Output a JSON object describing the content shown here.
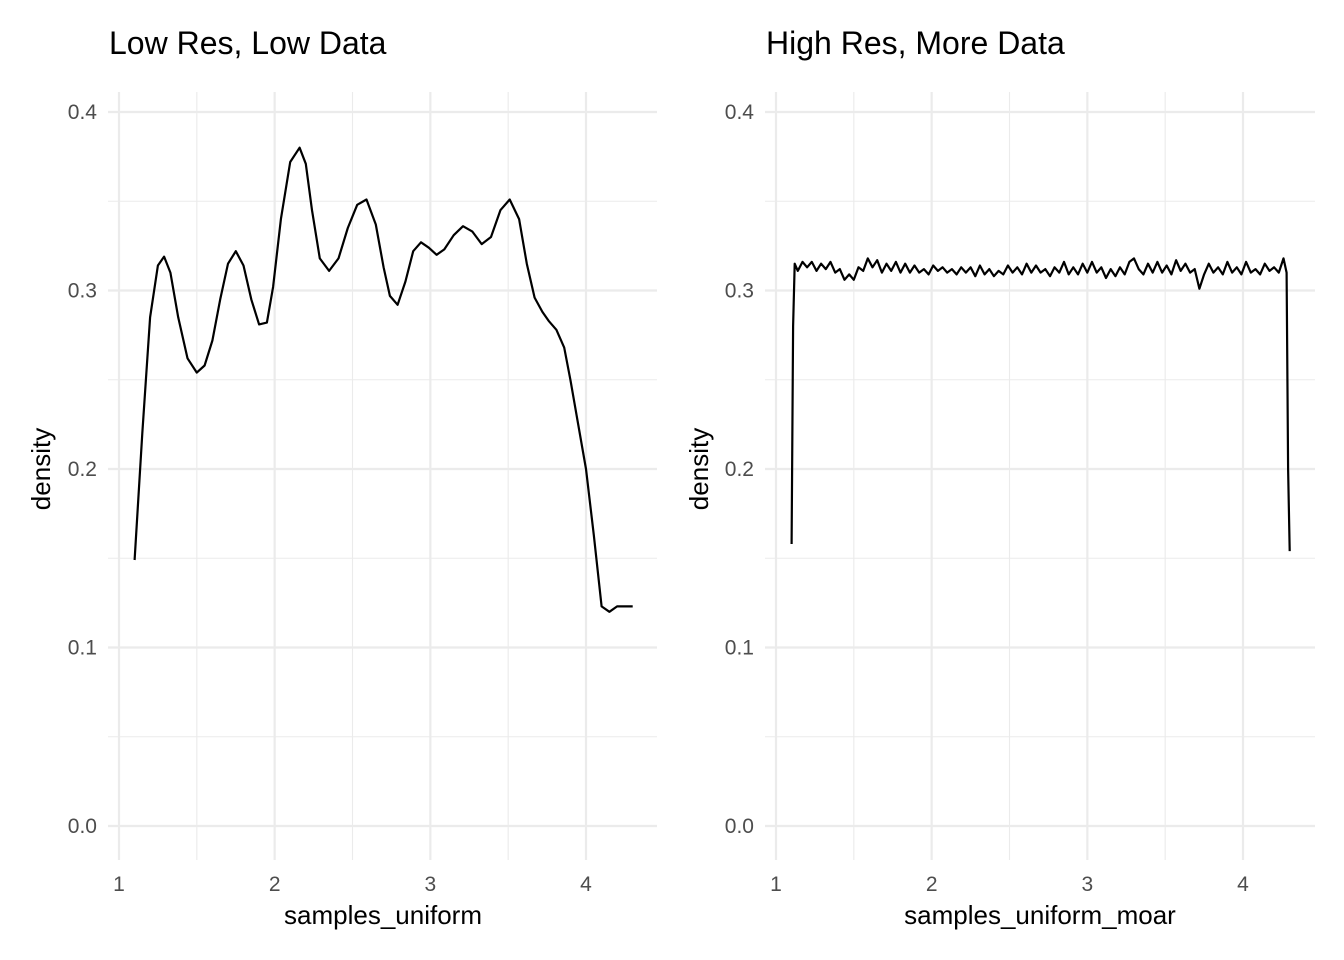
{
  "chart_data": [
    {
      "type": "line",
      "title": "Low Res, Low Data",
      "xlabel": "samples_uniform",
      "ylabel": "density",
      "xlim": [
        1,
        4.45
      ],
      "ylim": [
        -0.02,
        0.4
      ],
      "x_ticks": [
        1,
        2,
        3,
        4
      ],
      "y_ticks": [
        0.0,
        0.1,
        0.2,
        0.3,
        0.4
      ],
      "x_tick_labels": [
        "1",
        "2",
        "3",
        "4"
      ],
      "y_tick_labels": [
        "0.0",
        "0.1",
        "0.2",
        "0.3",
        "0.4"
      ],
      "grid": true,
      "series": [
        {
          "x": [
            1.1,
            1.15,
            1.2,
            1.25,
            1.29,
            1.33,
            1.38,
            1.44,
            1.5,
            1.55,
            1.6,
            1.65,
            1.7,
            1.75,
            1.8,
            1.85,
            1.9,
            1.95,
            1.99,
            2.04,
            2.1,
            2.16,
            2.2,
            2.24,
            2.29,
            2.35,
            2.41,
            2.47,
            2.53,
            2.59,
            2.65,
            2.7,
            2.74,
            2.79,
            2.84,
            2.89,
            2.94,
            2.99,
            3.04,
            3.09,
            3.15,
            3.21,
            3.27,
            3.33,
            3.39,
            3.45,
            3.51,
            3.57,
            3.62,
            3.67,
            3.72,
            3.76,
            3.81,
            3.86,
            3.9,
            3.95,
            4.0,
            4.05,
            4.1,
            4.15,
            4.2,
            4.25,
            4.3
          ],
          "y": [
            0.149,
            0.22,
            0.285,
            0.314,
            0.319,
            0.31,
            0.285,
            0.262,
            0.254,
            0.258,
            0.272,
            0.295,
            0.315,
            0.322,
            0.314,
            0.295,
            0.281,
            0.282,
            0.302,
            0.34,
            0.372,
            0.38,
            0.371,
            0.345,
            0.318,
            0.311,
            0.318,
            0.335,
            0.348,
            0.351,
            0.337,
            0.313,
            0.297,
            0.292,
            0.305,
            0.322,
            0.327,
            0.324,
            0.32,
            0.323,
            0.331,
            0.336,
            0.333,
            0.326,
            0.33,
            0.345,
            0.351,
            0.34,
            0.315,
            0.296,
            0.288,
            0.283,
            0.278,
            0.268,
            0.25,
            0.225,
            0.2,
            0.163,
            0.123,
            0.12,
            0.123,
            0.123,
            0.123
          ]
        }
      ]
    },
    {
      "type": "line",
      "title": "High Res, More Data",
      "xlabel": "samples_uniform_moar",
      "ylabel": "density",
      "xlim": [
        1,
        4.45
      ],
      "ylim": [
        -0.02,
        0.4
      ],
      "x_ticks": [
        1,
        2,
        3,
        4
      ],
      "y_ticks": [
        0.0,
        0.1,
        0.2,
        0.3,
        0.4
      ],
      "x_tick_labels": [
        "1",
        "2",
        "3",
        "4"
      ],
      "y_tick_labels": [
        "0.0",
        "0.1",
        "0.2",
        "0.3",
        "0.4"
      ],
      "grid": true,
      "series": [
        {
          "x": [
            1.1,
            1.11,
            1.12,
            1.14,
            1.17,
            1.2,
            1.23,
            1.26,
            1.29,
            1.32,
            1.35,
            1.38,
            1.41,
            1.44,
            1.47,
            1.5,
            1.53,
            1.56,
            1.59,
            1.62,
            1.65,
            1.68,
            1.71,
            1.74,
            1.77,
            1.8,
            1.83,
            1.86,
            1.89,
            1.92,
            1.95,
            1.98,
            2.01,
            2.04,
            2.07,
            2.1,
            2.13,
            2.16,
            2.19,
            2.22,
            2.25,
            2.28,
            2.31,
            2.34,
            2.37,
            2.4,
            2.43,
            2.46,
            2.49,
            2.52,
            2.55,
            2.58,
            2.61,
            2.64,
            2.67,
            2.7,
            2.73,
            2.76,
            2.79,
            2.82,
            2.85,
            2.88,
            2.91,
            2.94,
            2.97,
            3.0,
            3.03,
            3.06,
            3.09,
            3.12,
            3.15,
            3.18,
            3.21,
            3.24,
            3.27,
            3.3,
            3.33,
            3.36,
            3.39,
            3.42,
            3.45,
            3.48,
            3.51,
            3.54,
            3.57,
            3.6,
            3.63,
            3.66,
            3.69,
            3.72,
            3.75,
            3.78,
            3.81,
            3.84,
            3.87,
            3.9,
            3.93,
            3.96,
            3.99,
            4.02,
            4.05,
            4.08,
            4.11,
            4.14,
            4.17,
            4.2,
            4.23,
            4.26,
            4.28,
            4.29,
            4.3
          ],
          "y": [
            0.158,
            0.28,
            0.315,
            0.311,
            0.316,
            0.313,
            0.316,
            0.311,
            0.315,
            0.312,
            0.316,
            0.31,
            0.312,
            0.306,
            0.309,
            0.306,
            0.313,
            0.311,
            0.318,
            0.313,
            0.317,
            0.31,
            0.315,
            0.311,
            0.316,
            0.31,
            0.315,
            0.31,
            0.314,
            0.31,
            0.312,
            0.309,
            0.314,
            0.311,
            0.313,
            0.31,
            0.312,
            0.309,
            0.313,
            0.31,
            0.313,
            0.308,
            0.314,
            0.309,
            0.312,
            0.308,
            0.311,
            0.309,
            0.314,
            0.31,
            0.313,
            0.309,
            0.315,
            0.31,
            0.314,
            0.31,
            0.312,
            0.308,
            0.313,
            0.31,
            0.316,
            0.309,
            0.313,
            0.309,
            0.315,
            0.31,
            0.316,
            0.31,
            0.313,
            0.307,
            0.312,
            0.308,
            0.313,
            0.309,
            0.316,
            0.318,
            0.312,
            0.309,
            0.315,
            0.31,
            0.316,
            0.31,
            0.314,
            0.309,
            0.317,
            0.311,
            0.315,
            0.31,
            0.312,
            0.301,
            0.309,
            0.315,
            0.31,
            0.313,
            0.309,
            0.316,
            0.31,
            0.313,
            0.309,
            0.316,
            0.31,
            0.312,
            0.309,
            0.315,
            0.311,
            0.313,
            0.31,
            0.318,
            0.31,
            0.2,
            0.154
          ]
        }
      ]
    }
  ]
}
